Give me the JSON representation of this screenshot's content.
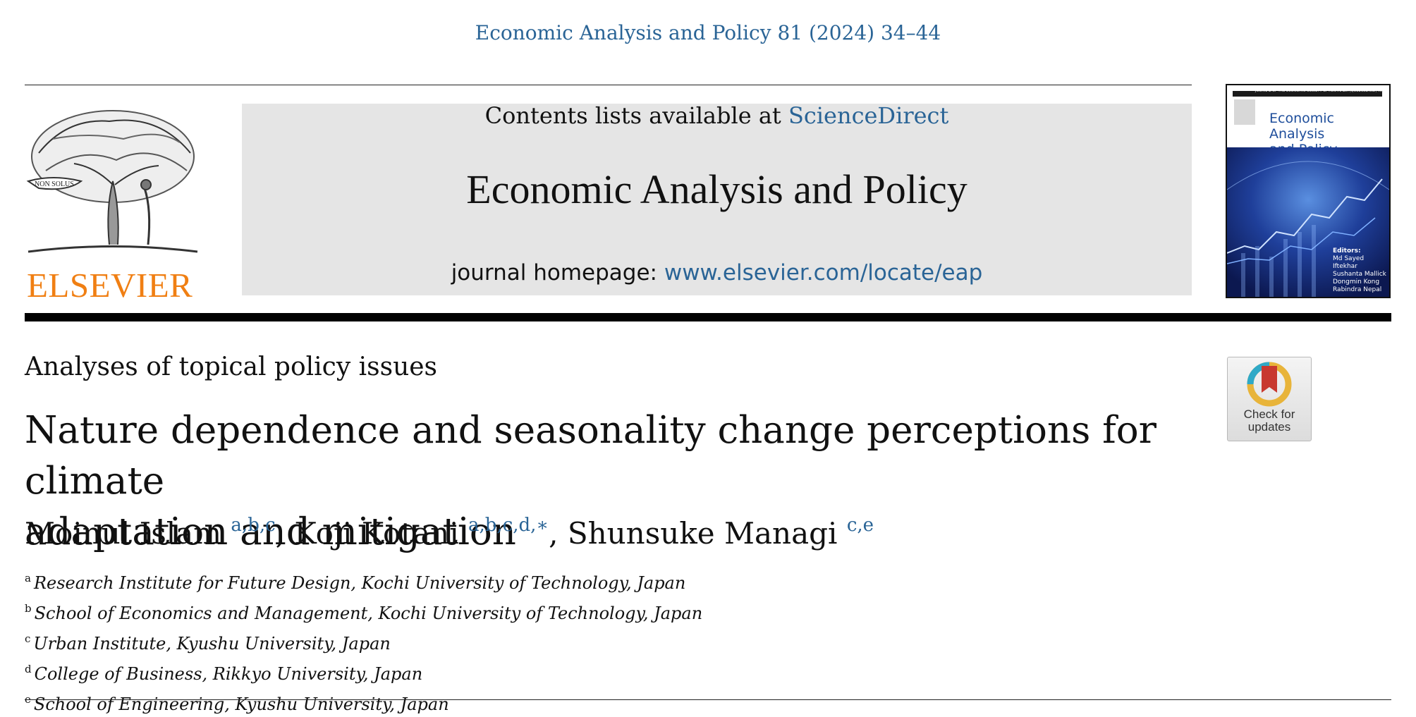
{
  "citation": "Economic Analysis and Policy 81 (2024) 34–44",
  "publisher": {
    "name": "ELSEVIER",
    "motto": "NON SOLUS"
  },
  "journal_box": {
    "contents_prefix": "Contents lists available at ",
    "contents_link": "ScienceDirect",
    "title": "Economic Analysis and Policy",
    "homepage_prefix": "journal homepage: ",
    "homepage_url": "www.elsevier.com/locate/eap"
  },
  "cover": {
    "header": "JOURNAL OF THE ECONOMIC SOCIETY OF AUSTRALIA (QUEENSLAND) INC.",
    "title_line1": "Economic Analysis",
    "title_line2": "and Policy",
    "editors_label": "Editors:",
    "editors": [
      "Md Sayed Iftekhar",
      "Sushanta Mallick",
      "Dongmin Kong",
      "Rabindra Nepal"
    ]
  },
  "section_label": "Analyses of topical policy issues",
  "check_updates": {
    "line1": "Check for",
    "line2": "updates"
  },
  "article": {
    "title_line1": "Nature dependence and seasonality change perceptions for climate",
    "title_line2": "adaptation and mitigation",
    "authors": [
      {
        "name": "Moinul Islam",
        "marks": "a,b,c",
        "sep": ", "
      },
      {
        "name": "Koji Kotani",
        "marks": "a,b,c,d,∗",
        "sep": ", "
      },
      {
        "name": "Shunsuke Managi",
        "marks": "c,e",
        "sep": ""
      }
    ],
    "affiliations": [
      {
        "key": "a",
        "text": "Research Institute for Future Design, Kochi University of Technology, Japan"
      },
      {
        "key": "b",
        "text": "School of Economics and Management, Kochi University of Technology, Japan"
      },
      {
        "key": "c",
        "text": "Urban Institute, Kyushu University, Japan"
      },
      {
        "key": "d",
        "text": "College of Business, Rikkyo University, Japan"
      },
      {
        "key": "e",
        "text": "School of Engineering, Kyushu University, Japan"
      }
    ]
  },
  "colors": {
    "link": "#2a6496",
    "publisher": "#f07f13",
    "box": "#e5e5e5"
  }
}
